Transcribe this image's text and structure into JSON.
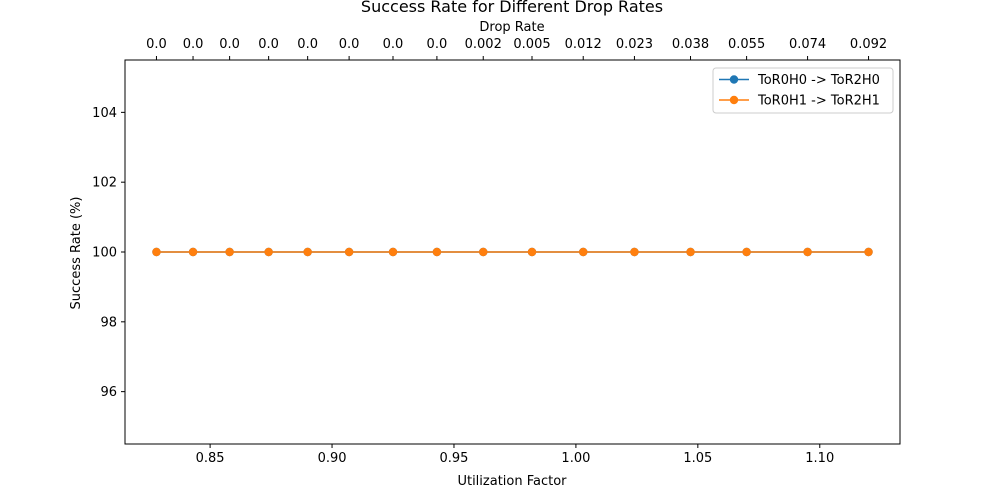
{
  "chart_data": {
    "type": "line",
    "title": "Success Rate for Different Drop Rates",
    "xlabel": "Utilization Factor",
    "ylabel": "Success Rate (%)",
    "top_xlabel": "Drop Rate",
    "xlim": [
      0.8151,
      1.1329
    ],
    "ylim": [
      94.5,
      105.5
    ],
    "xticks": [
      0.85,
      0.9,
      0.95,
      1.0,
      1.05,
      1.1
    ],
    "xtick_labels": [
      "0.85",
      "0.90",
      "0.95",
      "1.00",
      "1.05",
      "1.10"
    ],
    "yticks": [
      96,
      98,
      100,
      102,
      104
    ],
    "ytick_labels": [
      "96",
      "98",
      "100",
      "102",
      "104"
    ],
    "x": [
      0.828,
      0.843,
      0.858,
      0.874,
      0.89,
      0.907,
      0.925,
      0.943,
      0.962,
      0.982,
      1.003,
      1.024,
      1.047,
      1.07,
      1.095,
      1.12
    ],
    "top_tick_labels": [
      "0.0",
      "0.0",
      "0.0",
      "0.0",
      "0.0",
      "0.0",
      "0.0",
      "0.0",
      "0.002",
      "0.005",
      "0.012",
      "0.023",
      "0.038",
      "0.055",
      "0.074",
      "0.092"
    ],
    "series": [
      {
        "name": "ToR0H0 -> ToR2H0",
        "color": "#1f77b4",
        "values": [
          100,
          100,
          100,
          100,
          100,
          100,
          100,
          100,
          100,
          100,
          100,
          100,
          100,
          100,
          100,
          100
        ]
      },
      {
        "name": "ToR0H1 -> ToR2H1",
        "color": "#ff7f0e",
        "values": [
          100,
          100,
          100,
          100,
          100,
          100,
          100,
          100,
          100,
          100,
          100,
          100,
          100,
          100,
          100,
          100
        ]
      }
    ],
    "grid": false,
    "legend_position": "top-right"
  }
}
